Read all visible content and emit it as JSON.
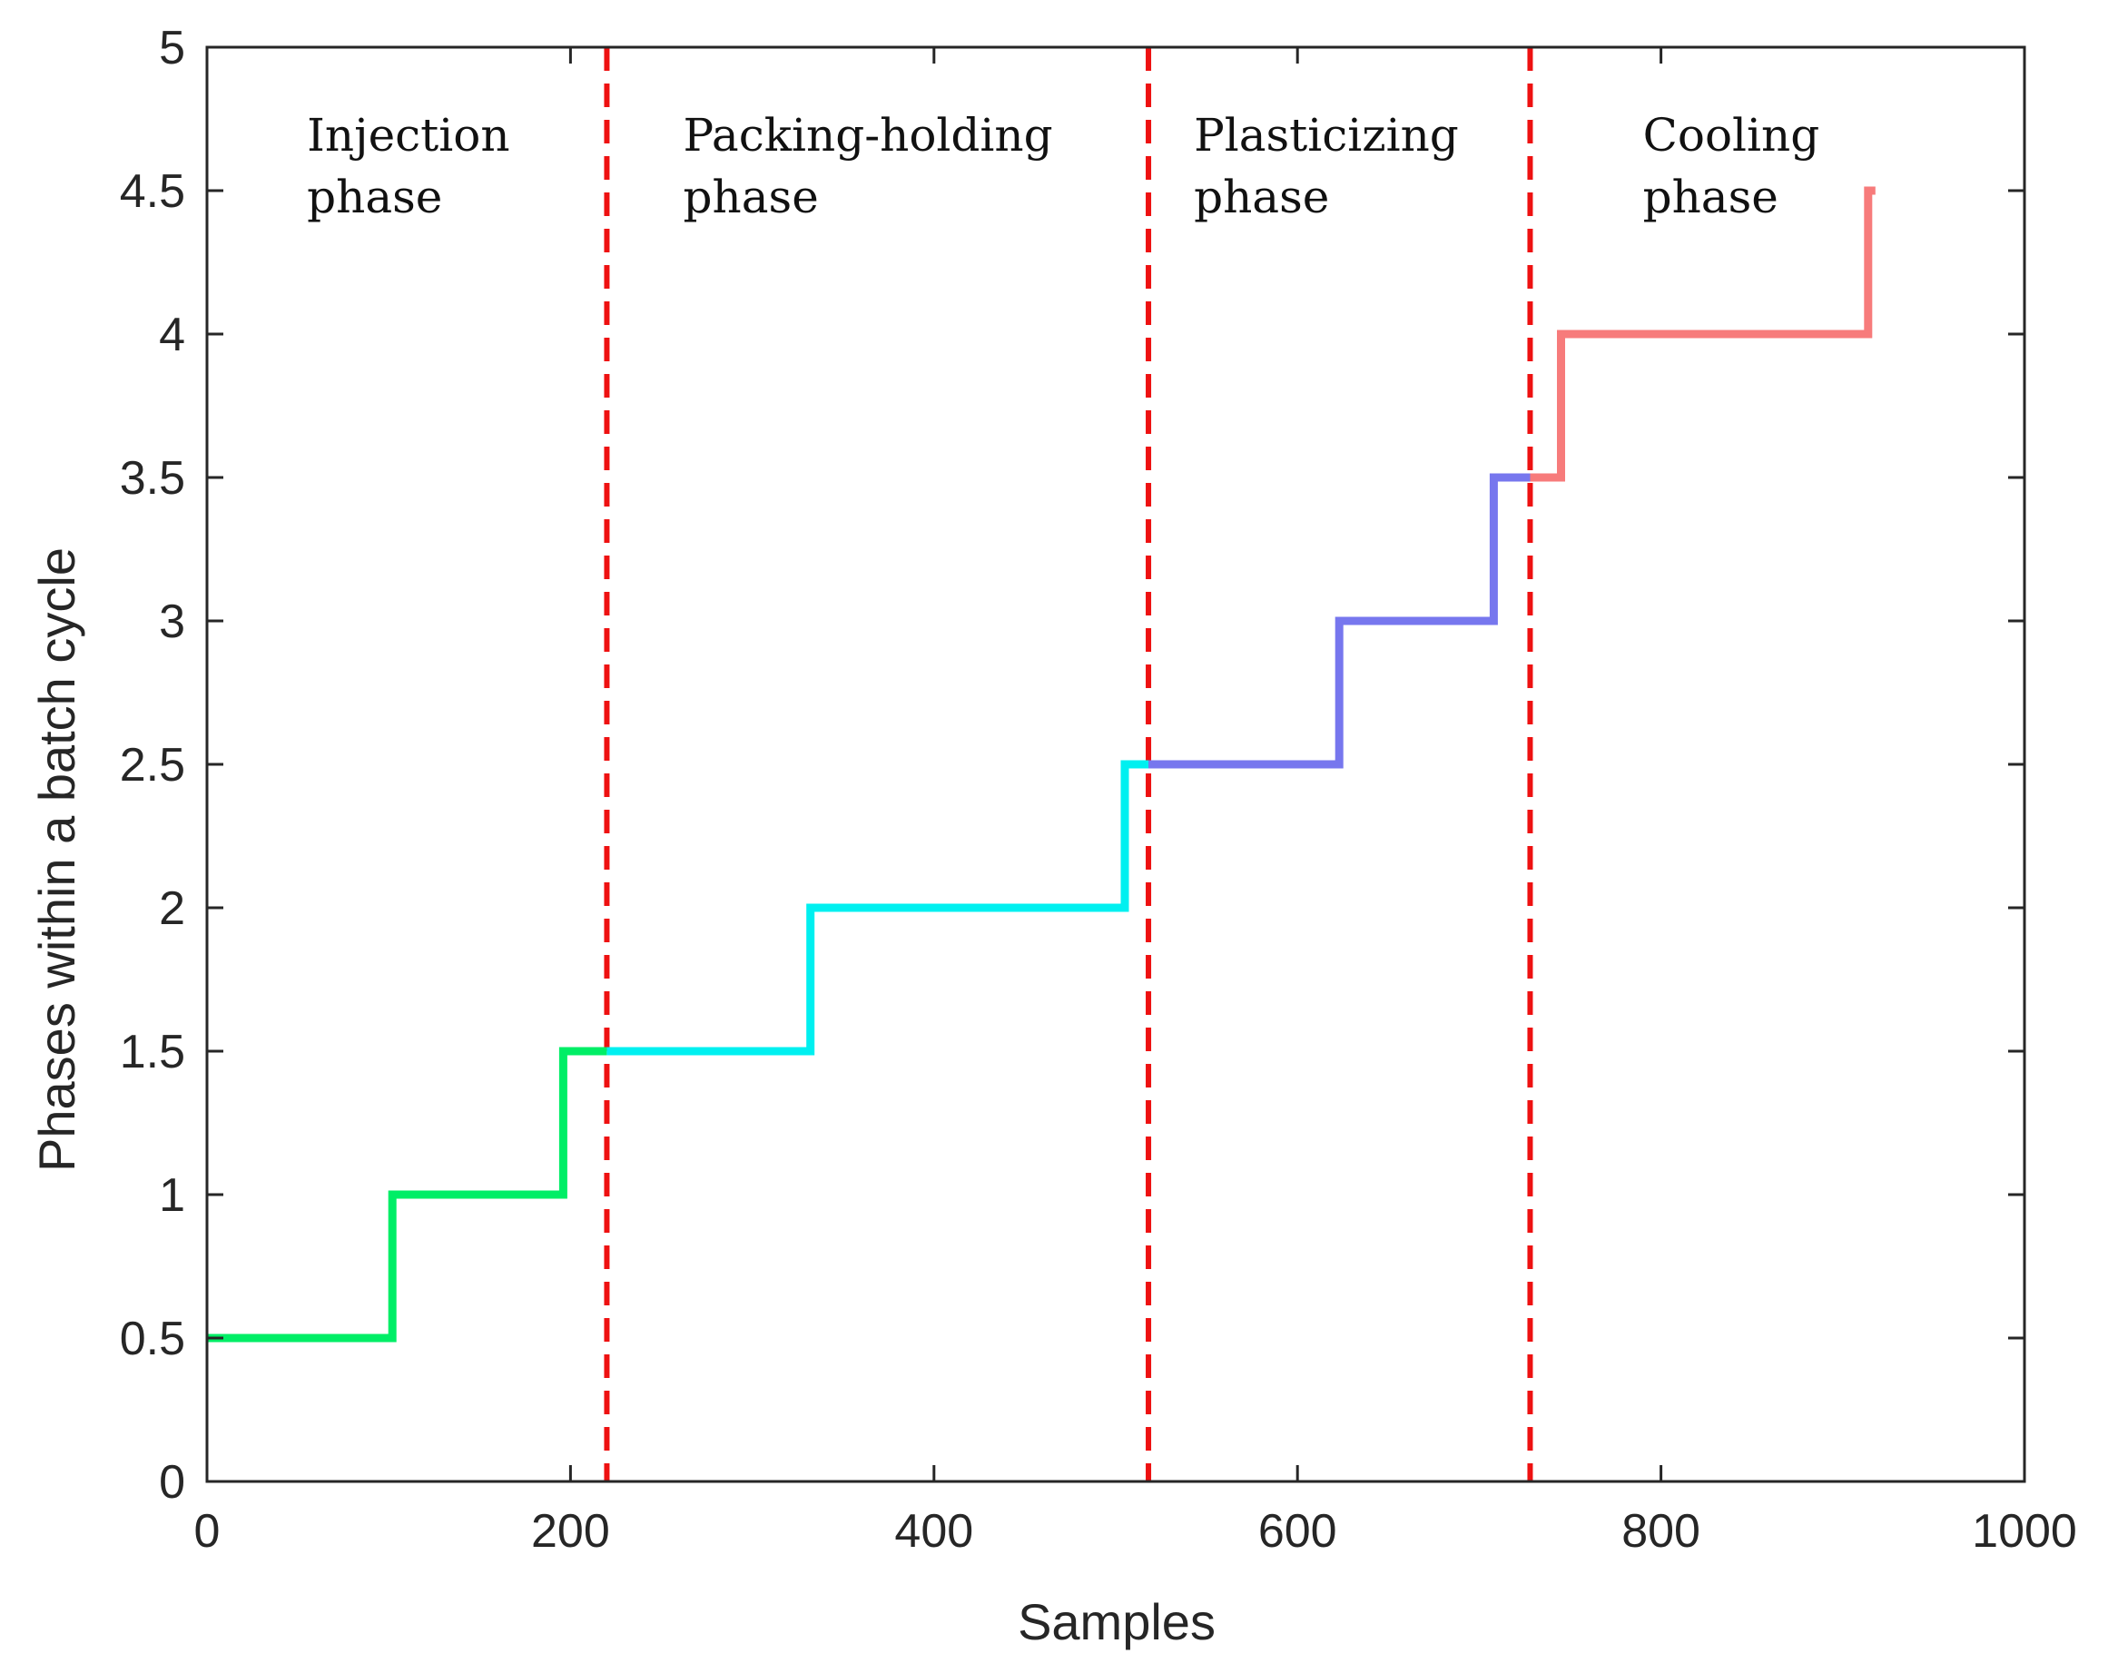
{
  "chart_data": {
    "type": "line",
    "title": "",
    "xlabel": "Samples",
    "ylabel": "Phases within a batch cycle",
    "xlim": [
      0,
      1000
    ],
    "ylim": [
      0,
      5
    ],
    "x_ticks": [
      0,
      200,
      400,
      600,
      800,
      1000
    ],
    "y_ticks": [
      0,
      0.5,
      1,
      1.5,
      2,
      2.5,
      3,
      3.5,
      4,
      4.5,
      5
    ],
    "x_tick_labels": [
      "0",
      "200",
      "400",
      "600",
      "800",
      "1000"
    ],
    "y_tick_labels": [
      "0",
      "0.5",
      "1",
      "1.5",
      "2",
      "2.5",
      "3",
      "3.5",
      "4",
      "4.5",
      "5"
    ],
    "grid": false,
    "boundaries": {
      "color": "#ee1111",
      "style": "dashed",
      "x": [
        220,
        518,
        728
      ]
    },
    "phase_labels": [
      {
        "line1": "Injection",
        "line2": "phase",
        "x": 55,
        "y": 4.64
      },
      {
        "line1": "Packing-holding",
        "line2": "phase",
        "x": 262,
        "y": 4.64
      },
      {
        "line1": "Plasticizing",
        "line2": "phase",
        "x": 543,
        "y": 4.64
      },
      {
        "line1": "Cooling",
        "line2": "phase",
        "x": 790,
        "y": 4.64
      }
    ],
    "series": [
      {
        "color": "#00ee66",
        "x": [
          0,
          102,
          102,
          196,
          196,
          220
        ],
        "y": [
          0.5,
          0.5,
          1,
          1,
          1.5,
          1.5
        ]
      },
      {
        "color": "#00f0f0",
        "x": [
          220,
          332,
          332,
          505,
          505,
          518
        ],
        "y": [
          1.5,
          1.5,
          2,
          2,
          2.5,
          2.5
        ]
      },
      {
        "color": "#7777ee",
        "x": [
          518,
          623,
          623,
          708,
          708,
          728
        ],
        "y": [
          2.5,
          2.5,
          3,
          3,
          3.5,
          3.5
        ]
      },
      {
        "color": "#f77b7b",
        "x": [
          728,
          745,
          745,
          914,
          914,
          918
        ],
        "y": [
          3.5,
          3.5,
          4,
          4,
          4.5,
          4.5
        ]
      }
    ]
  }
}
